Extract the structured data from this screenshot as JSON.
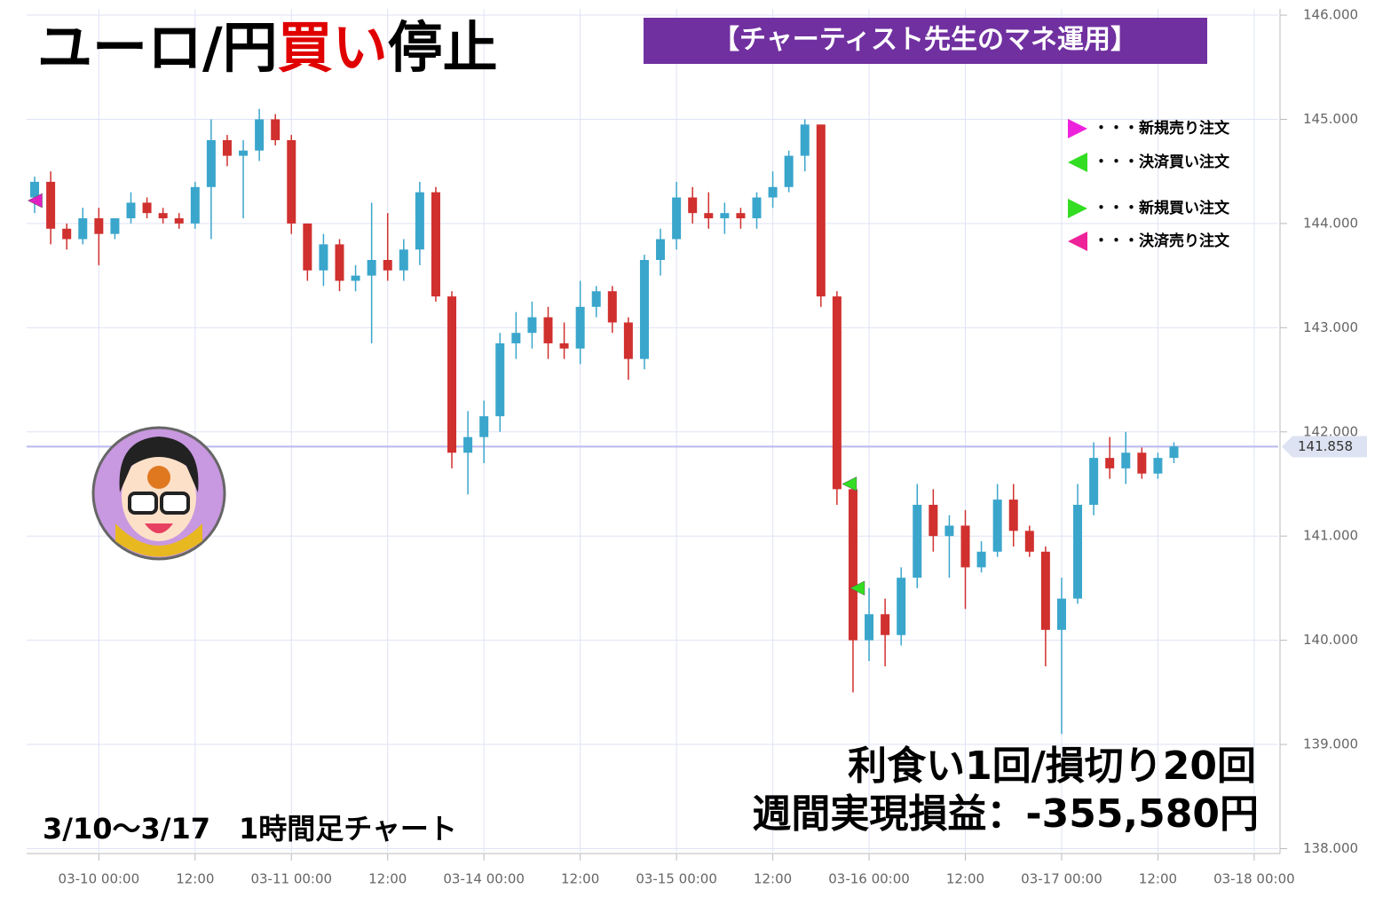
{
  "chart_data": {
    "type": "candlestick",
    "title_parts": [
      {
        "text": "ユーロ/円",
        "color": "#000000"
      },
      {
        "text": "買い",
        "color": "#e00000"
      },
      {
        "text": "停止",
        "color": "#000000"
      }
    ],
    "badge": "【チャーティスト先生のマネ運用】",
    "result_line1": "利食い1回/損切り20回",
    "result_line2": "週間実現損益：-355,580円",
    "period_label": "3/10〜3/17　1時間足チャート",
    "up_color": "#3aa6cc",
    "down_color": "#d0302e",
    "grid": true,
    "ylim": [
      137.97,
      146.06
    ],
    "yticks": [
      {
        "value": 138,
        "label": "138.000"
      },
      {
        "value": 139,
        "label": "139.000"
      },
      {
        "value": 140,
        "label": "140.000"
      },
      {
        "value": 141,
        "label": "141.000"
      },
      {
        "value": 142,
        "label": "142.000"
      },
      {
        "value": 143,
        "label": "143.000"
      },
      {
        "value": 144,
        "label": "144.000"
      },
      {
        "value": 145,
        "label": "145.000"
      },
      {
        "value": 146,
        "label": "146.000"
      }
    ],
    "xlim": [
      "03-09 15:00",
      "03-18 03:00"
    ],
    "xticks": [
      "03-10 00:00",
      {
        "value": "03-10 12:00",
        "label": "12:00"
      },
      "03-11 00:00",
      {
        "value": "03-11 12:00",
        "label": "12:00"
      },
      "03-14 00:00",
      {
        "value": "03-14 12:00",
        "label": "12:00"
      },
      "03-15 00:00",
      {
        "value": "03-15 12:00",
        "label": "12:00"
      },
      "03-16 00:00",
      {
        "value": "03-16 12:00",
        "label": "12:00"
      },
      "03-17 00:00",
      {
        "value": "03-17 12:00",
        "label": "12:00"
      },
      "03-18 00:00"
    ],
    "current_price": 141.858,
    "x": [
      "03-09 16:00",
      "03-09 18:00",
      "03-09 20:00",
      "03-09 22:00",
      "03-10 00:00",
      "03-10 02:00",
      "03-10 04:00",
      "03-10 06:00",
      "03-10 08:00",
      "03-10 10:00",
      "03-10 12:00",
      "03-10 14:00",
      "03-10 16:00",
      "03-10 18:00",
      "03-10 20:00",
      "03-10 22:00",
      "03-11 00:00",
      "03-11 02:00",
      "03-11 04:00",
      "03-11 06:00",
      "03-11 08:00",
      "03-11 10:00",
      "03-11 12:00",
      "03-11 14:00",
      "03-11 16:00",
      "03-11 18:00",
      "03-11 20:00",
      "03-11 22:00",
      "03-14 00:00",
      "03-14 02:00",
      "03-14 04:00",
      "03-14 06:00",
      "03-14 08:00",
      "03-14 10:00",
      "03-14 12:00",
      "03-14 14:00",
      "03-14 16:00",
      "03-14 18:00",
      "03-14 20:00",
      "03-14 22:00",
      "03-15 00:00",
      "03-15 02:00",
      "03-15 04:00",
      "03-15 06:00",
      "03-15 08:00",
      "03-15 10:00",
      "03-15 12:00",
      "03-15 14:00",
      "03-15 16:00",
      "03-15 18:00",
      "03-15 20:00",
      "03-15 22:00",
      "03-16 00:00",
      "03-16 02:00",
      "03-16 04:00",
      "03-16 06:00",
      "03-16 08:00",
      "03-16 10:00",
      "03-16 12:00",
      "03-16 14:00",
      "03-16 16:00",
      "03-16 18:00",
      "03-16 20:00",
      "03-16 22:00",
      "03-17 00:00",
      "03-17 02:00",
      "03-17 04:00",
      "03-17 06:00",
      "03-17 08:00",
      "03-17 10:00",
      "03-17 12:00",
      "03-17 14:00"
    ],
    "open": [
      144.25,
      144.4,
      143.95,
      143.85,
      144.05,
      143.9,
      144.05,
      144.2,
      144.1,
      144.05,
      144.0,
      144.35,
      144.8,
      144.65,
      144.7,
      145.0,
      144.8,
      144.0,
      143.55,
      143.8,
      143.45,
      143.5,
      143.65,
      143.55,
      143.75,
      144.3,
      143.3,
      141.8,
      141.95,
      142.15,
      142.85,
      142.95,
      143.1,
      142.85,
      142.8,
      143.2,
      143.35,
      143.05,
      142.7,
      143.65,
      143.85,
      144.25,
      144.1,
      144.05,
      144.1,
      144.05,
      144.25,
      144.35,
      144.65,
      144.95,
      143.3,
      141.45,
      140.0,
      140.25,
      140.05,
      140.6,
      141.3,
      141.0,
      141.1,
      140.7,
      140.85,
      141.35,
      141.05,
      140.85,
      140.1,
      140.4,
      141.3,
      141.75,
      141.65,
      141.8,
      141.6,
      141.75
    ],
    "high": [
      144.45,
      144.5,
      144.0,
      144.15,
      144.15,
      144.05,
      144.3,
      144.25,
      144.15,
      144.1,
      144.4,
      145.0,
      144.85,
      144.8,
      145.1,
      145.05,
      144.85,
      144.0,
      143.9,
      143.85,
      143.6,
      144.2,
      144.1,
      143.85,
      144.4,
      144.35,
      143.35,
      142.2,
      142.3,
      142.95,
      143.15,
      143.25,
      143.2,
      143.05,
      143.45,
      143.4,
      143.4,
      143.1,
      143.7,
      143.95,
      144.4,
      144.35,
      144.3,
      144.2,
      144.15,
      144.3,
      144.5,
      144.7,
      145.0,
      144.95,
      143.35,
      141.5,
      140.5,
      140.4,
      140.7,
      141.5,
      141.45,
      141.2,
      141.25,
      140.95,
      141.5,
      141.5,
      141.1,
      140.9,
      140.6,
      141.5,
      141.9,
      141.95,
      142.0,
      141.85,
      141.8,
      141.9
    ],
    "low": [
      144.1,
      143.8,
      143.75,
      143.8,
      143.6,
      143.85,
      144.0,
      144.05,
      144.0,
      143.95,
      143.95,
      143.85,
      144.55,
      144.05,
      144.6,
      144.75,
      143.9,
      143.45,
      143.4,
      143.35,
      143.35,
      142.85,
      143.45,
      143.45,
      143.6,
      143.25,
      141.65,
      141.4,
      141.7,
      142.0,
      142.7,
      142.8,
      142.7,
      142.7,
      142.65,
      143.1,
      142.95,
      142.5,
      142.6,
      143.5,
      143.75,
      144.0,
      143.95,
      143.9,
      143.95,
      143.95,
      144.15,
      144.3,
      144.5,
      143.2,
      141.3,
      139.5,
      139.8,
      139.75,
      139.95,
      140.5,
      140.85,
      140.6,
      140.3,
      140.65,
      140.8,
      140.9,
      140.8,
      139.75,
      139.1,
      140.35,
      141.2,
      141.55,
      141.5,
      141.55,
      141.55,
      141.7
    ],
    "close": [
      144.4,
      143.95,
      143.85,
      144.05,
      143.9,
      144.05,
      144.2,
      144.1,
      144.05,
      144.0,
      144.35,
      144.8,
      144.65,
      144.7,
      145.0,
      144.8,
      144.0,
      143.55,
      143.8,
      143.45,
      143.5,
      143.65,
      143.55,
      143.75,
      144.3,
      143.3,
      141.8,
      141.95,
      142.15,
      142.85,
      142.95,
      143.1,
      142.85,
      142.8,
      143.2,
      143.35,
      143.05,
      142.7,
      143.65,
      143.85,
      144.25,
      144.1,
      144.05,
      144.1,
      144.05,
      144.25,
      144.35,
      144.65,
      144.95,
      143.3,
      141.45,
      140.0,
      140.25,
      140.05,
      140.6,
      141.3,
      141.0,
      141.1,
      140.7,
      140.85,
      141.35,
      141.05,
      140.85,
      140.1,
      140.4,
      141.3,
      141.75,
      141.65,
      141.8,
      141.6,
      141.75,
      141.86
    ],
    "markers": [
      {
        "x": "03-09 15:30",
        "price": 144.22,
        "color": "#e020c0",
        "direction": "left"
      },
      {
        "x": "03-15 21:00",
        "price": 141.5,
        "color": "#33dd22",
        "direction": "left"
      },
      {
        "x": "03-15 22:00",
        "price": 140.5,
        "color": "#33dd22",
        "direction": "left"
      }
    ],
    "legend": [
      {
        "label": "・・・新規売り注文",
        "color": "#ee22dd",
        "direction": "right"
      },
      {
        "label": "・・・決済買い注文",
        "color": "#33dd22",
        "direction": "left"
      },
      {
        "label": "・・・新規買い注文",
        "color": "#33dd22",
        "direction": "right"
      },
      {
        "label": "・・・決済売り注文",
        "color": "#ee2299",
        "direction": "left"
      }
    ]
  }
}
